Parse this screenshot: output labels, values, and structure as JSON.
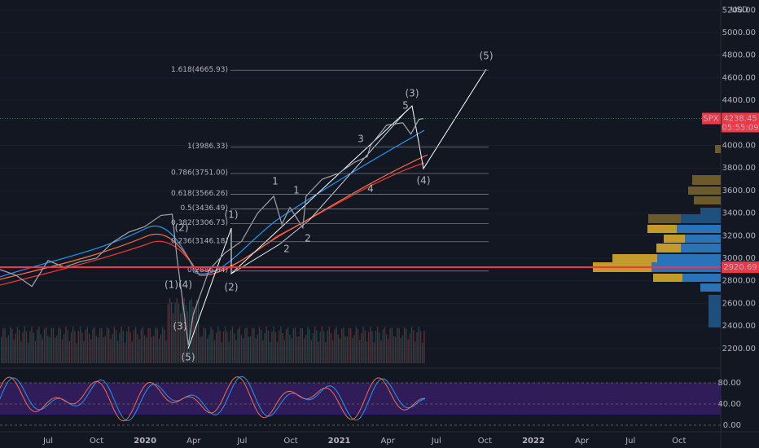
{
  "price_axis": {
    "currency": "USD",
    "ticks": [
      {
        "value": 5200,
        "label": "5200.00"
      },
      {
        "value": 5000,
        "label": "5000.00"
      },
      {
        "value": 4800,
        "label": "4800.00"
      },
      {
        "value": 4600,
        "label": "4600.00"
      },
      {
        "value": 4400,
        "label": "4400.00"
      },
      {
        "value": 4000,
        "label": "4000.00"
      },
      {
        "value": 3800,
        "label": "3800.00"
      },
      {
        "value": 3600,
        "label": "3600.00"
      },
      {
        "value": 3400,
        "label": "3400.00"
      },
      {
        "value": 3200,
        "label": "3200.00"
      },
      {
        "value": 3000,
        "label": "3000.00"
      },
      {
        "value": 2800,
        "label": "2800.00"
      },
      {
        "value": 2600,
        "label": "2600.00"
      },
      {
        "value": 2400,
        "label": "2400.00"
      },
      {
        "value": 2200,
        "label": "2200.00"
      }
    ]
  },
  "indicator_axis": {
    "ticks": [
      {
        "value": 80,
        "label": "80.00"
      },
      {
        "value": 40,
        "label": "40.00"
      },
      {
        "value": 0,
        "label": "0.00"
      }
    ]
  },
  "time_axis": [
    "Jul",
    "Oct",
    "2020",
    "Apr",
    "Jul",
    "Oct",
    "2021",
    "Apr",
    "Jul",
    "Oct",
    "2022",
    "Apr",
    "Jul",
    "Oct"
  ],
  "fib_levels": [
    {
      "label": "1.618(4665.93)",
      "price": 4665.93
    },
    {
      "label": "1(3986.33)",
      "price": 3986.33
    },
    {
      "label": "0.786(3751.00)",
      "price": 3751.0
    },
    {
      "label": "0.618(3566.26)",
      "price": 3566.26
    },
    {
      "label": "0.5(3436.49)",
      "price": 3436.49
    },
    {
      "label": "0.382(3306.73)",
      "price": 3306.73
    },
    {
      "label": "0.236(3146.18)",
      "price": 3146.18
    },
    {
      "label": "0(2886.64)",
      "price": 2886.64
    }
  ],
  "last_price": {
    "symbol": "SPX",
    "value": 4238.45,
    "countdown": "05:55:09"
  },
  "level_line": {
    "value": 2920.69
  },
  "waves": [
    {
      "label": "(5)",
      "color": "#ffffff"
    },
    {
      "label": "(3)",
      "color": "#ffffff"
    },
    {
      "label": "(4)",
      "color": "#ffffff"
    },
    {
      "label": "(1)",
      "color": "#ffffff"
    },
    {
      "label": "(2)",
      "color": "#ffffff"
    },
    {
      "label": "(2)",
      "color": "#f7a531"
    },
    {
      "label": "(1)(4)",
      "color": "#f7a531"
    },
    {
      "label": "(3)",
      "color": "#f7a531"
    },
    {
      "label": "(5)",
      "color": "#f7a531"
    },
    {
      "label": "1",
      "color": "#f7a531"
    },
    {
      "label": "2",
      "color": "#f7a531"
    },
    {
      "label": "3",
      "color": "#f7a531"
    },
    {
      "label": "4",
      "color": "#f7a531"
    },
    {
      "label": "5",
      "color": "#f7a531"
    },
    {
      "label": "1",
      "color": "#ffffff"
    },
    {
      "label": "2",
      "color": "#ffffff"
    }
  ],
  "price_path": {
    "month": [
      -3,
      -2,
      -1,
      0,
      1,
      2,
      3,
      4,
      5,
      6,
      7,
      7.7,
      8,
      8.7,
      9,
      10,
      11,
      12,
      13,
      14,
      14.5,
      15,
      15.8,
      16,
      17,
      18,
      19,
      19.8,
      20,
      21,
      22,
      22.5,
      23,
      23.3
    ],
    "close": [
      2900,
      2850,
      2750,
      2980,
      2920,
      2970,
      3000,
      3140,
      3230,
      3280,
      3380,
      3390,
      3000,
      2230,
      2500,
      2900,
      3050,
      3150,
      3400,
      3550,
      3300,
      3450,
      3270,
      3550,
      3700,
      3750,
      3850,
      3900,
      4000,
      4180,
      4200,
      4100,
      4230,
      4238.45
    ]
  }
}
